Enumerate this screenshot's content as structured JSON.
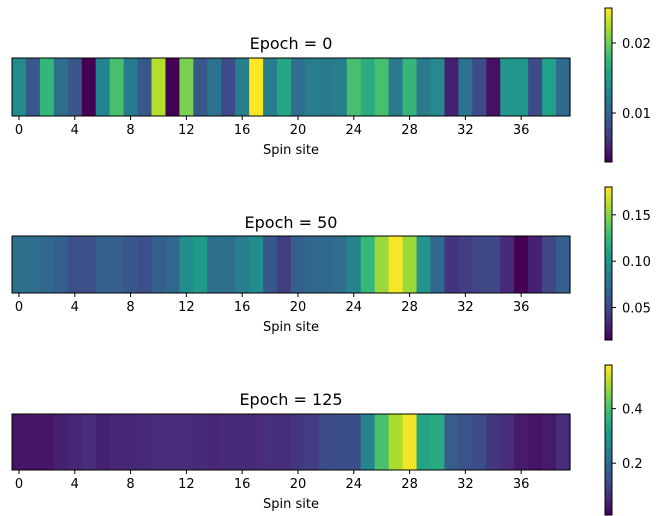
{
  "chart_data": [
    {
      "type": "heatmap",
      "title": "Epoch = 0",
      "xlabel": "Spin site",
      "x_ticks": [
        0,
        4,
        8,
        12,
        16,
        20,
        24,
        28,
        32,
        36
      ],
      "colorbar": {
        "range": [
          0.003,
          0.025
        ],
        "ticks": [
          0.01,
          0.02
        ],
        "tick_labels": [
          "0.01",
          "0.02"
        ]
      },
      "values": [
        0.0135,
        0.009,
        0.0175,
        0.011,
        0.009,
        0.003,
        0.013,
        0.0185,
        0.012,
        0.009,
        0.0225,
        0.003,
        0.0205,
        0.009,
        0.0115,
        0.008,
        0.0125,
        0.025,
        0.0125,
        0.016,
        0.011,
        0.0125,
        0.012,
        0.0125,
        0.0185,
        0.0165,
        0.0185,
        0.012,
        0.0175,
        0.012,
        0.0135,
        0.005,
        0.0115,
        0.008,
        0.004,
        0.0145,
        0.0145,
        0.008,
        0.0155,
        0.0105
      ]
    },
    {
      "type": "heatmap",
      "title": "Epoch = 50",
      "xlabel": "Spin site",
      "x_ticks": [
        0,
        4,
        8,
        12,
        16,
        20,
        24,
        28,
        32,
        36
      ],
      "colorbar": {
        "range": [
          0.015,
          0.18
        ],
        "ticks": [
          0.05,
          0.1,
          0.15
        ],
        "tick_labels": [
          "0.05",
          "0.10",
          "0.15"
        ]
      },
      "values": [
        0.075,
        0.075,
        0.07,
        0.065,
        0.055,
        0.055,
        0.065,
        0.065,
        0.06,
        0.055,
        0.065,
        0.07,
        0.095,
        0.105,
        0.075,
        0.075,
        0.085,
        0.095,
        0.06,
        0.045,
        0.065,
        0.07,
        0.07,
        0.075,
        0.09,
        0.125,
        0.155,
        0.178,
        0.155,
        0.1,
        0.07,
        0.04,
        0.045,
        0.05,
        0.05,
        0.035,
        0.015,
        0.03,
        0.05,
        0.065
      ]
    },
    {
      "type": "heatmap",
      "title": "Epoch = 125",
      "xlabel": "Spin site",
      "x_ticks": [
        0,
        4,
        8,
        12,
        16,
        20,
        24,
        28,
        32,
        36
      ],
      "colorbar": {
        "range": [
          0.01,
          0.56
        ],
        "ticks": [
          0.2,
          0.4
        ],
        "tick_labels": [
          "0.2",
          "0.4"
        ]
      },
      "values": [
        0.04,
        0.045,
        0.045,
        0.06,
        0.07,
        0.08,
        0.06,
        0.07,
        0.07,
        0.075,
        0.08,
        0.08,
        0.08,
        0.075,
        0.07,
        0.075,
        0.075,
        0.075,
        0.085,
        0.08,
        0.1,
        0.11,
        0.135,
        0.14,
        0.14,
        0.26,
        0.4,
        0.49,
        0.55,
        0.33,
        0.34,
        0.17,
        0.15,
        0.14,
        0.1,
        0.08,
        0.05,
        0.04,
        0.05,
        0.08
      ]
    }
  ]
}
